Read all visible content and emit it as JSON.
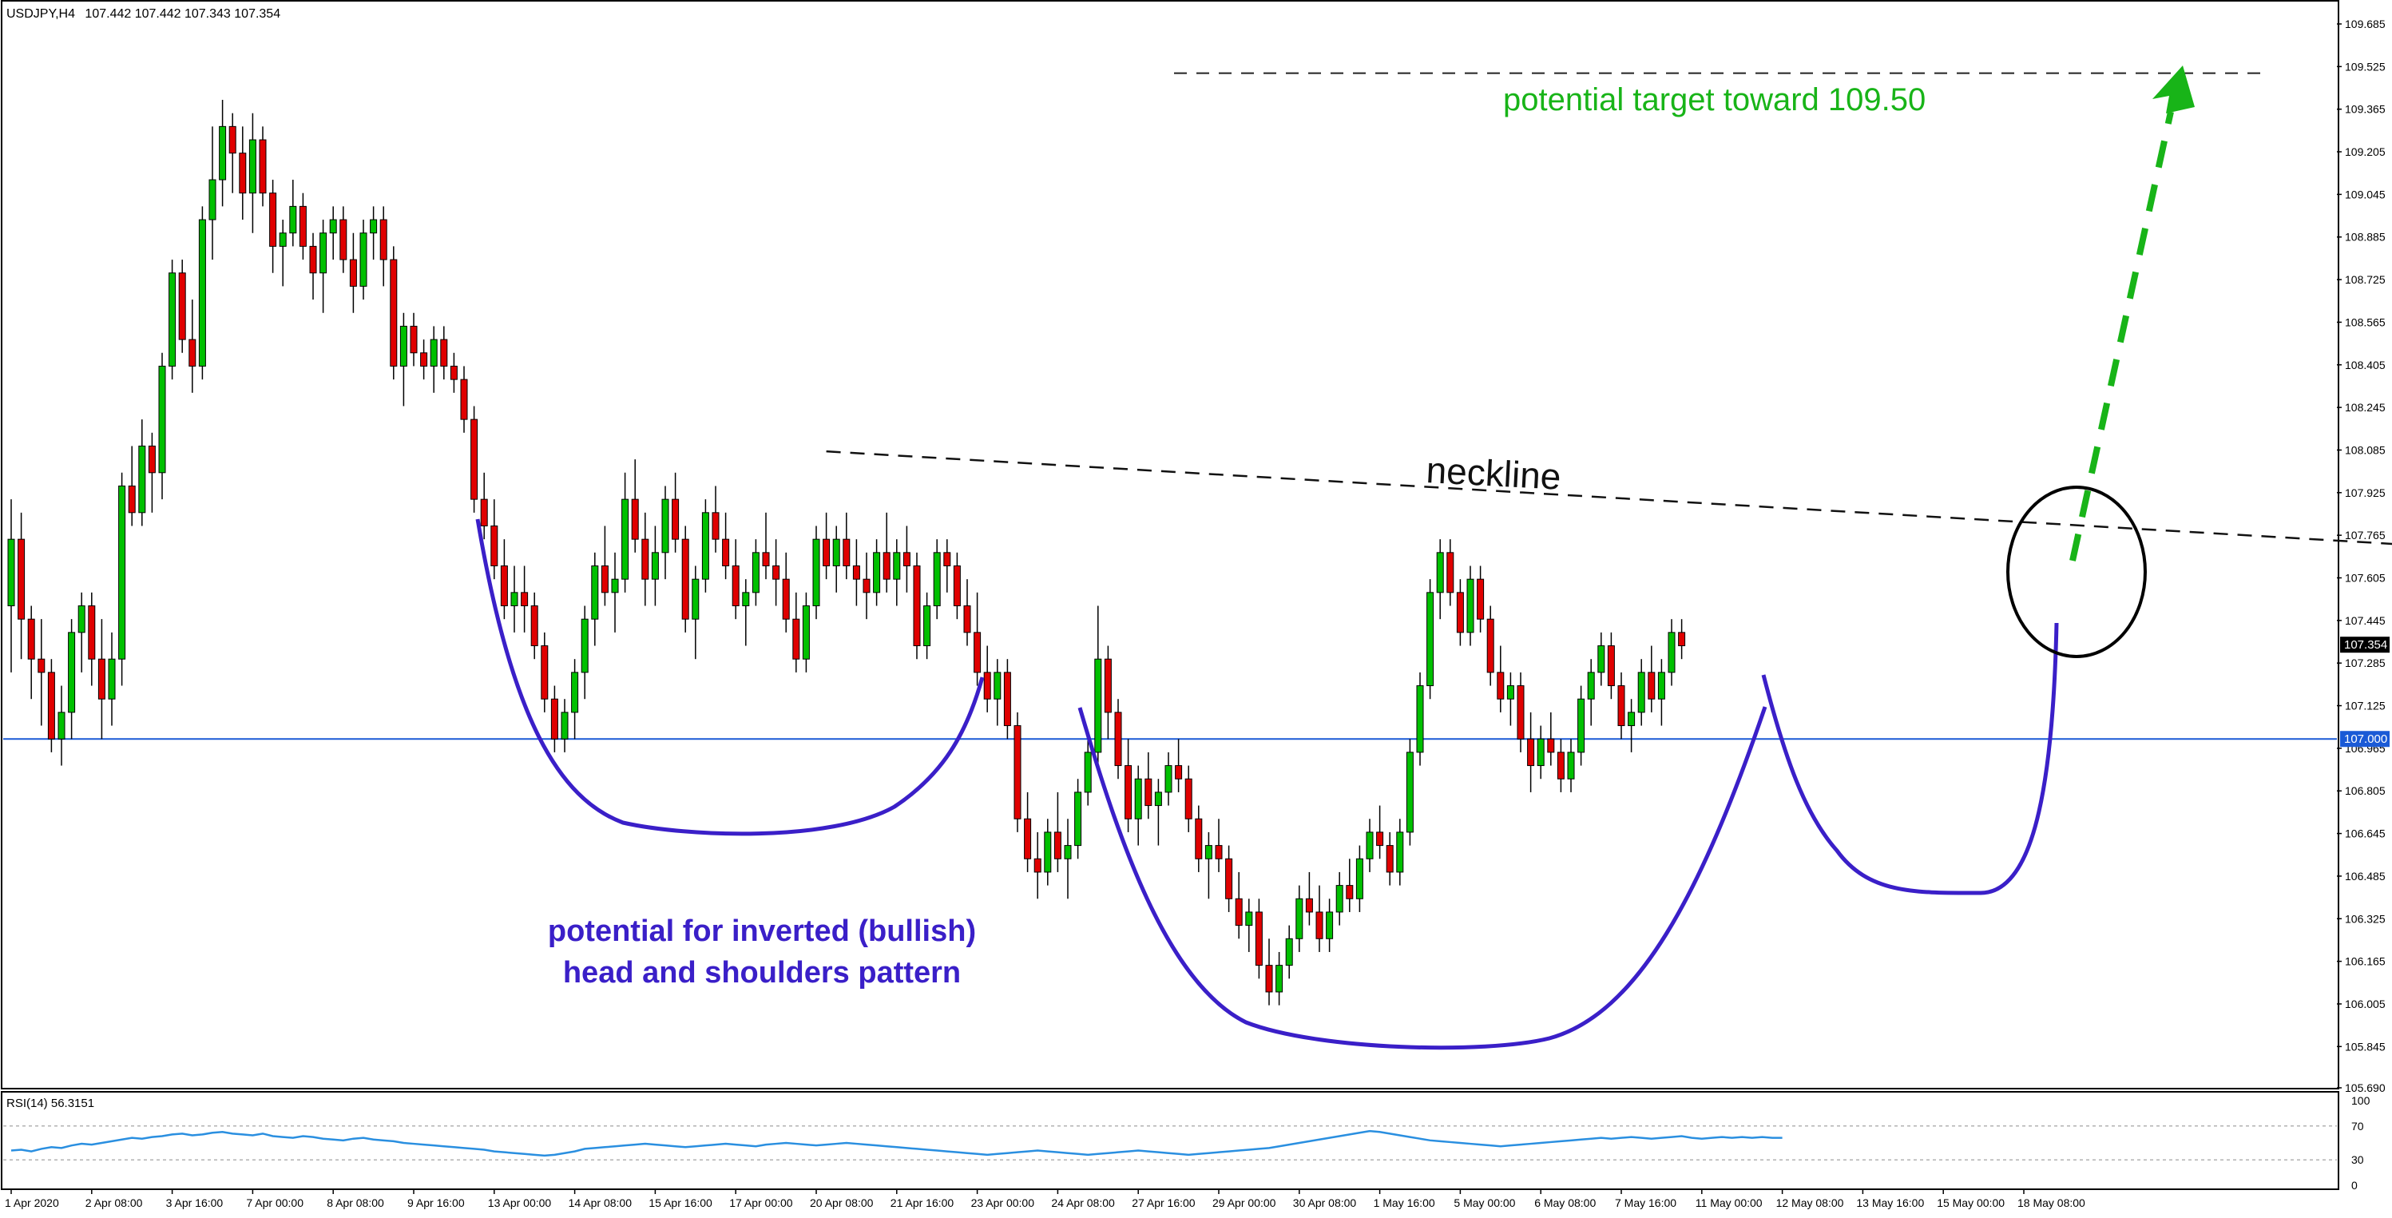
{
  "chart_data": {
    "type": "candlestick",
    "header": {
      "symbol_tf": "USDJPY,H4",
      "ohlc": "107.442 107.442 107.343 107.354"
    },
    "price_axis": {
      "min": 105.69,
      "max": 109.685,
      "ticks": [
        "109.685",
        "109.525",
        "109.365",
        "109.205",
        "109.045",
        "108.885",
        "108.725",
        "108.565",
        "108.405",
        "108.245",
        "108.085",
        "107.925",
        "107.765",
        "107.605",
        "107.445",
        "107.285",
        "107.125",
        "106.965",
        "106.805",
        "106.645",
        "106.485",
        "106.325",
        "106.165",
        "106.005",
        "105.845",
        "105.690"
      ],
      "tick_values": [
        109.685,
        109.525,
        109.365,
        109.205,
        109.045,
        108.885,
        108.725,
        108.565,
        108.405,
        108.245,
        108.085,
        107.925,
        107.765,
        107.605,
        107.445,
        107.285,
        107.125,
        106.965,
        106.805,
        106.645,
        106.485,
        106.325,
        106.165,
        106.005,
        105.845,
        105.69
      ]
    },
    "time_axis": {
      "labels": [
        "1 Apr 2020",
        "2 Apr 08:00",
        "3 Apr 16:00",
        "7 Apr 00:00",
        "8 Apr 08:00",
        "9 Apr 16:00",
        "13 Apr 00:00",
        "14 Apr 08:00",
        "15 Apr 16:00",
        "17 Apr 00:00",
        "20 Apr 08:00",
        "21 Apr 16:00",
        "23 Apr 00:00",
        "24 Apr 08:00",
        "27 Apr 16:00",
        "29 Apr 00:00",
        "30 Apr 08:00",
        "1 May 16:00",
        "5 May 00:00",
        "6 May 08:00",
        "7 May 16:00",
        "11 May 00:00",
        "12 May 08:00",
        "13 May 16:00",
        "15 May 00:00",
        "18 May 08:00"
      ],
      "label_bar_index": [
        0,
        8,
        16,
        24,
        32,
        40,
        48,
        56,
        64,
        72,
        80,
        88,
        96,
        104,
        112,
        120,
        128,
        136,
        144,
        152,
        160,
        168,
        176,
        184,
        192,
        200
      ]
    },
    "colors": {
      "bull": "#00c000",
      "bear": "#e00000",
      "wick": "#000000",
      "support": "#1a5ad6",
      "pattern": "#3a1fc8",
      "target_text": "#18b418",
      "arrow": "#18b418",
      "rsi": "#2a8fe0"
    },
    "bars": [
      [
        107.5,
        107.9,
        107.25,
        107.75
      ],
      [
        107.75,
        107.85,
        107.3,
        107.45
      ],
      [
        107.45,
        107.5,
        107.15,
        107.3
      ],
      [
        107.3,
        107.45,
        107.05,
        107.25
      ],
      [
        107.25,
        107.3,
        106.95,
        107.0
      ],
      [
        107.0,
        107.2,
        106.9,
        107.1
      ],
      [
        107.1,
        107.45,
        107.0,
        107.4
      ],
      [
        107.4,
        107.55,
        107.25,
        107.5
      ],
      [
        107.5,
        107.55,
        107.2,
        107.3
      ],
      [
        107.3,
        107.45,
        107.0,
        107.15
      ],
      [
        107.15,
        107.4,
        107.05,
        107.3
      ],
      [
        107.3,
        108.0,
        107.2,
        107.95
      ],
      [
        107.95,
        108.1,
        107.8,
        107.85
      ],
      [
        107.85,
        108.2,
        107.8,
        108.1
      ],
      [
        108.1,
        108.15,
        107.85,
        108.0
      ],
      [
        108.0,
        108.45,
        107.9,
        108.4
      ],
      [
        108.4,
        108.8,
        108.35,
        108.75
      ],
      [
        108.75,
        108.8,
        108.45,
        108.5
      ],
      [
        108.5,
        108.65,
        108.3,
        108.4
      ],
      [
        108.4,
        109.0,
        108.35,
        108.95
      ],
      [
        108.95,
        109.3,
        108.8,
        109.1
      ],
      [
        109.1,
        109.4,
        109.0,
        109.3
      ],
      [
        109.3,
        109.35,
        109.05,
        109.2
      ],
      [
        109.2,
        109.3,
        108.95,
        109.05
      ],
      [
        109.05,
        109.35,
        108.9,
        109.25
      ],
      [
        109.25,
        109.3,
        109.0,
        109.05
      ],
      [
        109.05,
        109.1,
        108.75,
        108.85
      ],
      [
        108.85,
        108.95,
        108.7,
        108.9
      ],
      [
        108.9,
        109.1,
        108.85,
        109.0
      ],
      [
        109.0,
        109.05,
        108.8,
        108.85
      ],
      [
        108.85,
        108.9,
        108.65,
        108.75
      ],
      [
        108.75,
        108.95,
        108.6,
        108.9
      ],
      [
        108.9,
        109.0,
        108.8,
        108.95
      ],
      [
        108.95,
        109.0,
        108.75,
        108.8
      ],
      [
        108.8,
        108.9,
        108.6,
        108.7
      ],
      [
        108.7,
        108.95,
        108.65,
        108.9
      ],
      [
        108.9,
        109.0,
        108.8,
        108.95
      ],
      [
        108.95,
        109.0,
        108.7,
        108.8
      ],
      [
        108.8,
        108.85,
        108.35,
        108.4
      ],
      [
        108.4,
        108.6,
        108.25,
        108.55
      ],
      [
        108.55,
        108.6,
        108.4,
        108.45
      ],
      [
        108.45,
        108.5,
        108.35,
        108.4
      ],
      [
        108.4,
        108.55,
        108.3,
        108.5
      ],
      [
        108.5,
        108.55,
        108.35,
        108.4
      ],
      [
        108.4,
        108.45,
        108.3,
        108.35
      ],
      [
        108.35,
        108.4,
        108.15,
        108.2
      ],
      [
        108.2,
        108.25,
        107.85,
        107.9
      ],
      [
        107.9,
        108.0,
        107.75,
        107.8
      ],
      [
        107.8,
        107.9,
        107.6,
        107.65
      ],
      [
        107.65,
        107.75,
        107.45,
        107.5
      ],
      [
        107.5,
        107.65,
        107.4,
        107.55
      ],
      [
        107.55,
        107.65,
        107.4,
        107.5
      ],
      [
        107.5,
        107.55,
        107.3,
        107.35
      ],
      [
        107.35,
        107.4,
        107.1,
        107.15
      ],
      [
        107.15,
        107.2,
        106.95,
        107.0
      ],
      [
        107.0,
        107.15,
        106.95,
        107.1
      ],
      [
        107.1,
        107.3,
        107.0,
        107.25
      ],
      [
        107.25,
        107.5,
        107.15,
        107.45
      ],
      [
        107.45,
        107.7,
        107.35,
        107.65
      ],
      [
        107.65,
        107.8,
        107.5,
        107.55
      ],
      [
        107.55,
        107.7,
        107.4,
        107.6
      ],
      [
        107.6,
        108.0,
        107.55,
        107.9
      ],
      [
        107.9,
        108.05,
        107.7,
        107.75
      ],
      [
        107.75,
        107.85,
        107.5,
        107.6
      ],
      [
        107.6,
        107.8,
        107.5,
        107.7
      ],
      [
        107.7,
        107.95,
        107.6,
        107.9
      ],
      [
        107.9,
        108.0,
        107.7,
        107.75
      ],
      [
        107.75,
        107.8,
        107.4,
        107.45
      ],
      [
        107.45,
        107.65,
        107.3,
        107.6
      ],
      [
        107.6,
        107.9,
        107.55,
        107.85
      ],
      [
        107.85,
        107.95,
        107.7,
        107.75
      ],
      [
        107.75,
        107.85,
        107.6,
        107.65
      ],
      [
        107.65,
        107.75,
        107.45,
        107.5
      ],
      [
        107.5,
        107.6,
        107.35,
        107.55
      ],
      [
        107.55,
        107.75,
        107.5,
        107.7
      ],
      [
        107.7,
        107.85,
        107.6,
        107.65
      ],
      [
        107.65,
        107.75,
        107.5,
        107.6
      ],
      [
        107.6,
        107.7,
        107.4,
        107.45
      ],
      [
        107.45,
        107.55,
        107.25,
        107.3
      ],
      [
        107.3,
        107.55,
        107.25,
        107.5
      ],
      [
        107.5,
        107.8,
        107.45,
        107.75
      ],
      [
        107.75,
        107.85,
        107.6,
        107.65
      ],
      [
        107.65,
        107.8,
        107.55,
        107.75
      ],
      [
        107.75,
        107.85,
        107.6,
        107.65
      ],
      [
        107.65,
        107.75,
        107.5,
        107.6
      ],
      [
        107.6,
        107.7,
        107.45,
        107.55
      ],
      [
        107.55,
        107.75,
        107.5,
        107.7
      ],
      [
        107.7,
        107.85,
        107.55,
        107.6
      ],
      [
        107.6,
        107.75,
        107.5,
        107.7
      ],
      [
        107.7,
        107.8,
        107.55,
        107.65
      ],
      [
        107.65,
        107.7,
        107.3,
        107.35
      ],
      [
        107.35,
        107.55,
        107.3,
        107.5
      ],
      [
        107.5,
        107.75,
        107.45,
        107.7
      ],
      [
        107.7,
        107.75,
        107.55,
        107.65
      ],
      [
        107.65,
        107.7,
        107.45,
        107.5
      ],
      [
        107.5,
        107.6,
        107.35,
        107.4
      ],
      [
        107.4,
        107.55,
        107.2,
        107.25
      ],
      [
        107.25,
        107.35,
        107.1,
        107.15
      ],
      [
        107.15,
        107.3,
        107.05,
        107.25
      ],
      [
        107.25,
        107.3,
        107.0,
        107.05
      ],
      [
        107.05,
        107.1,
        106.65,
        106.7
      ],
      [
        106.7,
        106.8,
        106.5,
        106.55
      ],
      [
        106.55,
        106.65,
        106.4,
        106.5
      ],
      [
        106.5,
        106.7,
        106.45,
        106.65
      ],
      [
        106.65,
        106.8,
        106.5,
        106.55
      ],
      [
        106.55,
        106.7,
        106.4,
        106.6
      ],
      [
        106.6,
        106.85,
        106.55,
        106.8
      ],
      [
        106.8,
        107.0,
        106.75,
        106.95
      ],
      [
        106.95,
        107.5,
        106.9,
        107.3
      ],
      [
        107.3,
        107.35,
        107.0,
        107.1
      ],
      [
        107.1,
        107.15,
        106.85,
        106.9
      ],
      [
        106.9,
        107.0,
        106.65,
        106.7
      ],
      [
        106.7,
        106.9,
        106.6,
        106.85
      ],
      [
        106.85,
        106.95,
        106.7,
        106.75
      ],
      [
        106.75,
        106.85,
        106.6,
        106.8
      ],
      [
        106.8,
        106.95,
        106.75,
        106.9
      ],
      [
        106.9,
        107.0,
        106.8,
        106.85
      ],
      [
        106.85,
        106.9,
        106.65,
        106.7
      ],
      [
        106.7,
        106.75,
        106.5,
        106.55
      ],
      [
        106.55,
        106.65,
        106.4,
        106.6
      ],
      [
        106.6,
        106.7,
        106.5,
        106.55
      ],
      [
        106.55,
        106.6,
        106.35,
        106.4
      ],
      [
        106.4,
        106.5,
        106.25,
        106.3
      ],
      [
        106.3,
        106.4,
        106.2,
        106.35
      ],
      [
        106.35,
        106.4,
        106.1,
        106.15
      ],
      [
        106.15,
        106.25,
        106.0,
        106.05
      ],
      [
        106.05,
        106.2,
        106.0,
        106.15
      ],
      [
        106.15,
        106.3,
        106.1,
        106.25
      ],
      [
        106.25,
        106.45,
        106.2,
        106.4
      ],
      [
        106.4,
        106.5,
        106.3,
        106.35
      ],
      [
        106.35,
        106.45,
        106.2,
        106.25
      ],
      [
        106.25,
        106.4,
        106.2,
        106.35
      ],
      [
        106.35,
        106.5,
        106.3,
        106.45
      ],
      [
        106.45,
        106.55,
        106.35,
        106.4
      ],
      [
        106.4,
        106.6,
        106.35,
        106.55
      ],
      [
        106.55,
        106.7,
        106.5,
        106.65
      ],
      [
        106.65,
        106.75,
        106.55,
        106.6
      ],
      [
        106.6,
        106.65,
        106.45,
        106.5
      ],
      [
        106.5,
        106.7,
        106.45,
        106.65
      ],
      [
        106.65,
        107.0,
        106.6,
        106.95
      ],
      [
        106.95,
        107.25,
        106.9,
        107.2
      ],
      [
        107.2,
        107.6,
        107.15,
        107.55
      ],
      [
        107.55,
        107.75,
        107.45,
        107.7
      ],
      [
        107.7,
        107.75,
        107.5,
        107.55
      ],
      [
        107.55,
        107.6,
        107.35,
        107.4
      ],
      [
        107.4,
        107.65,
        107.35,
        107.6
      ],
      [
        107.6,
        107.65,
        107.4,
        107.45
      ],
      [
        107.45,
        107.5,
        107.2,
        107.25
      ],
      [
        107.25,
        107.35,
        107.1,
        107.15
      ],
      [
        107.15,
        107.25,
        107.05,
        107.2
      ],
      [
        107.2,
        107.25,
        106.95,
        107.0
      ],
      [
        107.0,
        107.1,
        106.8,
        106.9
      ],
      [
        106.9,
        107.05,
        106.85,
        107.0
      ],
      [
        107.0,
        107.1,
        106.9,
        106.95
      ],
      [
        106.95,
        107.0,
        106.8,
        106.85
      ],
      [
        106.85,
        107.0,
        106.8,
        106.95
      ],
      [
        106.95,
        107.2,
        106.9,
        107.15
      ],
      [
        107.15,
        107.3,
        107.05,
        107.25
      ],
      [
        107.25,
        107.4,
        107.2,
        107.35
      ],
      [
        107.35,
        107.4,
        107.15,
        107.2
      ],
      [
        107.2,
        107.25,
        107.0,
        107.05
      ],
      [
        107.05,
        107.15,
        106.95,
        107.1
      ],
      [
        107.1,
        107.3,
        107.05,
        107.25
      ],
      [
        107.25,
        107.35,
        107.1,
        107.15
      ],
      [
        107.15,
        107.3,
        107.05,
        107.25
      ],
      [
        107.25,
        107.45,
        107.2,
        107.4
      ],
      [
        107.4,
        107.45,
        107.3,
        107.35
      ]
    ],
    "rsi": {
      "label": "RSI(14) 56.3151",
      "levels": [
        "100",
        "70",
        "30",
        "0"
      ],
      "level_values": [
        100,
        70,
        30,
        0
      ],
      "values": [
        41,
        42,
        40,
        43,
        45,
        44,
        47,
        49,
        48,
        50,
        52,
        54,
        56,
        55,
        57,
        58,
        60,
        61,
        59,
        60,
        62,
        63,
        61,
        60,
        59,
        61,
        58,
        57,
        56,
        58,
        57,
        55,
        54,
        53,
        55,
        56,
        54,
        53,
        52,
        50,
        49,
        48,
        47,
        46,
        45,
        44,
        43,
        42,
        40,
        39,
        38,
        37,
        36,
        35,
        36,
        38,
        40,
        43,
        44,
        45,
        46,
        47,
        48,
        49,
        48,
        47,
        46,
        45,
        46,
        47,
        48,
        49,
        48,
        47,
        46,
        48,
        49,
        50,
        49,
        48,
        47,
        48,
        49,
        50,
        49,
        48,
        47,
        46,
        45,
        44,
        43,
        42,
        41,
        40,
        39,
        38,
        37,
        36,
        37,
        38,
        39,
        40,
        41,
        40,
        39,
        38,
        37,
        36,
        37,
        38,
        39,
        40,
        41,
        40,
        39,
        38,
        37,
        36,
        37,
        38,
        39,
        40,
        41,
        42,
        43,
        44,
        46,
        48,
        50,
        52,
        54,
        56,
        58,
        60,
        62,
        64,
        63,
        61,
        59,
        57,
        55,
        53,
        52,
        51,
        50,
        49,
        48,
        47,
        46,
        47,
        48,
        49,
        50,
        51,
        52,
        53,
        54,
        55,
        56,
        55,
        56,
        57,
        56,
        55,
        56,
        57,
        58,
        56,
        55,
        56,
        57,
        56,
        57,
        56,
        57,
        56,
        56
      ]
    },
    "levels": {
      "support": {
        "value": 107.0,
        "label": "107.000"
      },
      "current": {
        "value": 107.354,
        "label": "107.354"
      },
      "target": {
        "value": 109.5
      },
      "neckline_start": {
        "bar": 81,
        "price": 108.08
      },
      "neckline_end": {
        "bar": 296,
        "price": 107.6
      }
    },
    "annotations": {
      "neckline": "neckline",
      "target": "potential target toward 109.50",
      "pattern_line1": "potential for inverted (bullish)",
      "pattern_line2": "head and shoulders pattern"
    }
  }
}
